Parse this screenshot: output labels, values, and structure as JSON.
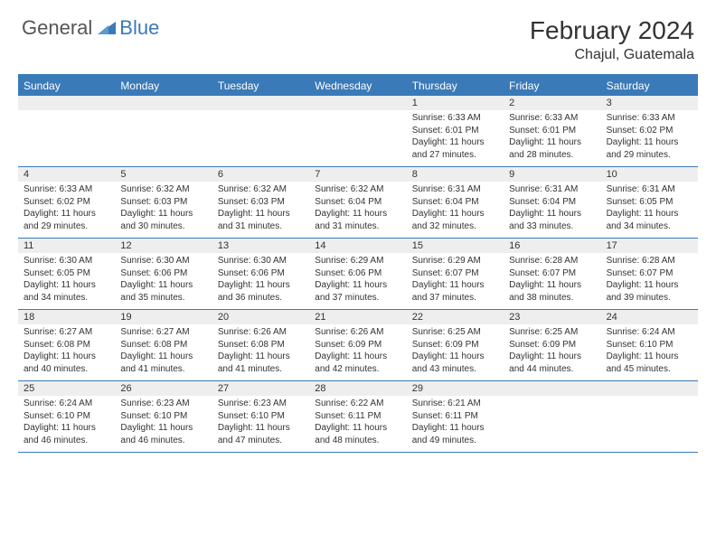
{
  "logo": {
    "general": "General",
    "blue": "Blue",
    "icon_color": "#3a7ab8"
  },
  "header": {
    "title": "February 2024",
    "location": "Chajul, Guatemala"
  },
  "colors": {
    "header_bg": "#3a7ab8",
    "date_bg": "#eeeeee",
    "rule": "#3a7ab8",
    "text": "#333333"
  },
  "day_names": [
    "Sunday",
    "Monday",
    "Tuesday",
    "Wednesday",
    "Thursday",
    "Friday",
    "Saturday"
  ],
  "weeks": [
    [
      null,
      null,
      null,
      null,
      {
        "n": "1",
        "sr": "6:33 AM",
        "ss": "6:01 PM",
        "dm": "27"
      },
      {
        "n": "2",
        "sr": "6:33 AM",
        "ss": "6:01 PM",
        "dm": "28"
      },
      {
        "n": "3",
        "sr": "6:33 AM",
        "ss": "6:02 PM",
        "dm": "29"
      }
    ],
    [
      {
        "n": "4",
        "sr": "6:33 AM",
        "ss": "6:02 PM",
        "dm": "29"
      },
      {
        "n": "5",
        "sr": "6:32 AM",
        "ss": "6:03 PM",
        "dm": "30"
      },
      {
        "n": "6",
        "sr": "6:32 AM",
        "ss": "6:03 PM",
        "dm": "31"
      },
      {
        "n": "7",
        "sr": "6:32 AM",
        "ss": "6:04 PM",
        "dm": "31"
      },
      {
        "n": "8",
        "sr": "6:31 AM",
        "ss": "6:04 PM",
        "dm": "32"
      },
      {
        "n": "9",
        "sr": "6:31 AM",
        "ss": "6:04 PM",
        "dm": "33"
      },
      {
        "n": "10",
        "sr": "6:31 AM",
        "ss": "6:05 PM",
        "dm": "34"
      }
    ],
    [
      {
        "n": "11",
        "sr": "6:30 AM",
        "ss": "6:05 PM",
        "dm": "34"
      },
      {
        "n": "12",
        "sr": "6:30 AM",
        "ss": "6:06 PM",
        "dm": "35"
      },
      {
        "n": "13",
        "sr": "6:30 AM",
        "ss": "6:06 PM",
        "dm": "36"
      },
      {
        "n": "14",
        "sr": "6:29 AM",
        "ss": "6:06 PM",
        "dm": "37"
      },
      {
        "n": "15",
        "sr": "6:29 AM",
        "ss": "6:07 PM",
        "dm": "37"
      },
      {
        "n": "16",
        "sr": "6:28 AM",
        "ss": "6:07 PM",
        "dm": "38"
      },
      {
        "n": "17",
        "sr": "6:28 AM",
        "ss": "6:07 PM",
        "dm": "39"
      }
    ],
    [
      {
        "n": "18",
        "sr": "6:27 AM",
        "ss": "6:08 PM",
        "dm": "40"
      },
      {
        "n": "19",
        "sr": "6:27 AM",
        "ss": "6:08 PM",
        "dm": "41"
      },
      {
        "n": "20",
        "sr": "6:26 AM",
        "ss": "6:08 PM",
        "dm": "41"
      },
      {
        "n": "21",
        "sr": "6:26 AM",
        "ss": "6:09 PM",
        "dm": "42"
      },
      {
        "n": "22",
        "sr": "6:25 AM",
        "ss": "6:09 PM",
        "dm": "43"
      },
      {
        "n": "23",
        "sr": "6:25 AM",
        "ss": "6:09 PM",
        "dm": "44"
      },
      {
        "n": "24",
        "sr": "6:24 AM",
        "ss": "6:10 PM",
        "dm": "45"
      }
    ],
    [
      {
        "n": "25",
        "sr": "6:24 AM",
        "ss": "6:10 PM",
        "dm": "46"
      },
      {
        "n": "26",
        "sr": "6:23 AM",
        "ss": "6:10 PM",
        "dm": "46"
      },
      {
        "n": "27",
        "sr": "6:23 AM",
        "ss": "6:10 PM",
        "dm": "47"
      },
      {
        "n": "28",
        "sr": "6:22 AM",
        "ss": "6:11 PM",
        "dm": "48"
      },
      {
        "n": "29",
        "sr": "6:21 AM",
        "ss": "6:11 PM",
        "dm": "49"
      },
      null,
      null
    ]
  ],
  "labels": {
    "sunrise": "Sunrise:",
    "sunset": "Sunset:",
    "daylight_prefix": "Daylight: 11 hours and ",
    "daylight_suffix": " minutes."
  }
}
